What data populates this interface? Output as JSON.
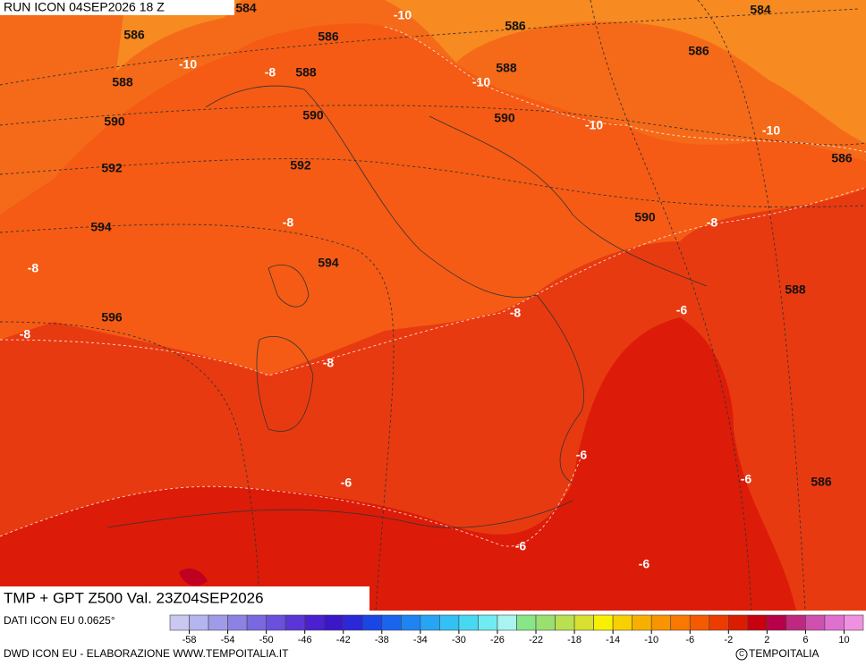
{
  "header": {
    "title": "RUN ICON 04SEP2026 18 Z"
  },
  "map": {
    "labels": [
      "584",
      "-10",
      "586",
      "584",
      "586",
      "586",
      "-10",
      "588",
      "586",
      "588",
      "-8",
      "588",
      "-10",
      "590",
      "590",
      "590",
      "-10",
      "-10",
      "592",
      "592",
      "586",
      "594",
      "-8",
      "590",
      "-8",
      "-8",
      "594",
      "588",
      "596",
      "-8",
      "-6",
      "-8",
      "-8",
      "-6",
      "-6",
      "-6",
      "586",
      "-6",
      "-6"
    ]
  },
  "footer": {
    "product": "TMP + GPT Z500 Val. 23Z04SEP2026",
    "source": "DATI ICON EU 0.0625°",
    "credit": "DWD ICON EU - ELABORAZIONE WWW.TEMPOITALIA.IT",
    "logo": "TEMPOITALIA"
  },
  "colorbar": {
    "colors": [
      "#c8c8f0",
      "#b4b4ee",
      "#a09be8",
      "#8c82e4",
      "#7a68e0",
      "#6a50dc",
      "#5a36d6",
      "#4a20d0",
      "#3a18c8",
      "#2a28d8",
      "#1a46e6",
      "#1a64ee",
      "#1e84f2",
      "#28a4f4",
      "#34c0f4",
      "#48d8f2",
      "#70ecf0",
      "#a8f4f0",
      "#88e688",
      "#9ae070",
      "#b8e050",
      "#d8e030",
      "#f8f000",
      "#f8d000",
      "#f8b000",
      "#f89400",
      "#f87800",
      "#f45a00",
      "#ec3c00",
      "#dc1c00",
      "#c80010",
      "#b8004a",
      "#c02880",
      "#d050b0",
      "#e070d0",
      "#f090e0"
    ],
    "ticks": [
      -58,
      -54,
      -50,
      -46,
      -42,
      -38,
      -34,
      -30,
      -26,
      -22,
      -18,
      -14,
      -10,
      -6,
      -2,
      2,
      6,
      10
    ]
  }
}
